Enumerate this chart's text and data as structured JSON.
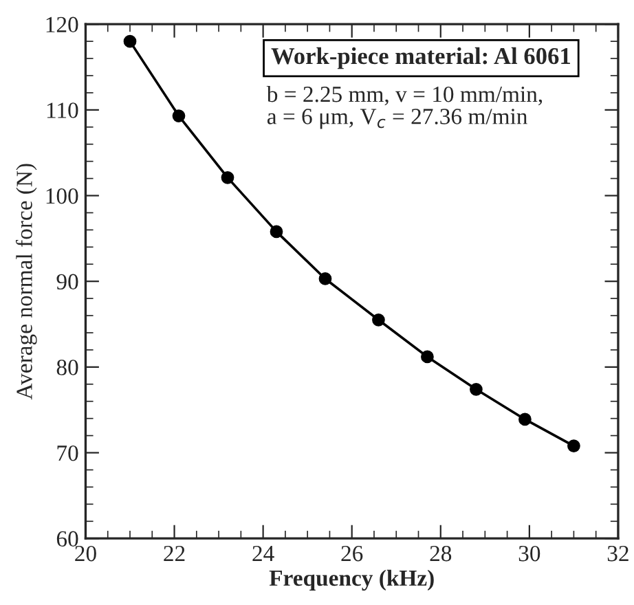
{
  "chart_data": {
    "type": "line",
    "xlabel": "Frequency (kHz)",
    "ylabel": "Average normal force (N)",
    "x": [
      21,
      22.1,
      23.2,
      24.3,
      25.4,
      26.6,
      27.7,
      28.8,
      29.9,
      31.0
    ],
    "series": [
      {
        "color": "#000000",
        "values": [
          118,
          109.3,
          102.1,
          95.8,
          90.3,
          85.5,
          81.2,
          77.4,
          73.9,
          70.8
        ]
      }
    ],
    "xlim": [
      20,
      32
    ],
    "xticks": [
      20,
      22,
      24,
      26,
      28,
      30,
      32
    ],
    "ylim": [
      60,
      120
    ],
    "yticks": [
      60,
      70,
      80,
      90,
      100,
      110,
      120
    ],
    "marker": "circle",
    "line_style": "solid",
    "annotations": [
      "Work-piece material: Al 6061",
      "b = 2.25 mm, v = 10 mm/min,\na = 6 μm, V$_{c}$ = 27.36 m/min"
    ]
  }
}
